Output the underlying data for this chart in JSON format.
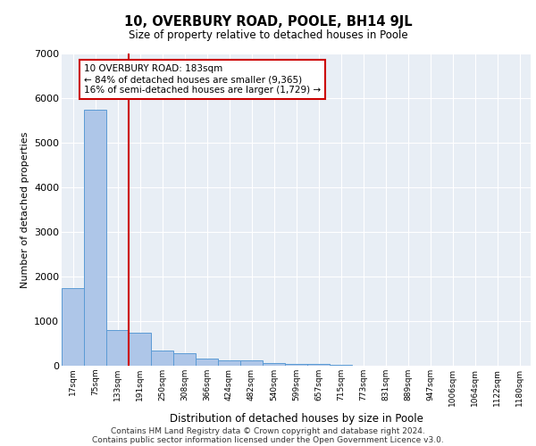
{
  "title": "10, OVERBURY ROAD, POOLE, BH14 9JL",
  "subtitle": "Size of property relative to detached houses in Poole",
  "xlabel": "Distribution of detached houses by size in Poole",
  "ylabel": "Number of detached properties",
  "bin_labels": [
    "17sqm",
    "75sqm",
    "133sqm",
    "191sqm",
    "250sqm",
    "308sqm",
    "366sqm",
    "424sqm",
    "482sqm",
    "540sqm",
    "599sqm",
    "657sqm",
    "715sqm",
    "773sqm",
    "831sqm",
    "889sqm",
    "947sqm",
    "1006sqm",
    "1064sqm",
    "1122sqm",
    "1180sqm"
  ],
  "bar_heights": [
    1750,
    5750,
    800,
    750,
    350,
    280,
    170,
    120,
    120,
    70,
    50,
    50,
    30,
    0,
    0,
    0,
    0,
    0,
    0,
    0,
    0
  ],
  "bar_color": "#aec6e8",
  "bar_edge_color": "#5b9bd5",
  "annotation_line1": "10 OVERBURY ROAD: 183sqm",
  "annotation_line2": "← 84% of detached houses are smaller (9,365)",
  "annotation_line3": "16% of semi-detached houses are larger (1,729) →",
  "annotation_box_color": "#ffffff",
  "annotation_box_edge": "#cc0000",
  "red_line_x": 2.5,
  "ylim": [
    0,
    7000
  ],
  "yticks": [
    0,
    1000,
    2000,
    3000,
    4000,
    5000,
    6000,
    7000
  ],
  "background_color": "#e8eef5",
  "footer1": "Contains HM Land Registry data © Crown copyright and database right 2024.",
  "footer2": "Contains public sector information licensed under the Open Government Licence v3.0."
}
